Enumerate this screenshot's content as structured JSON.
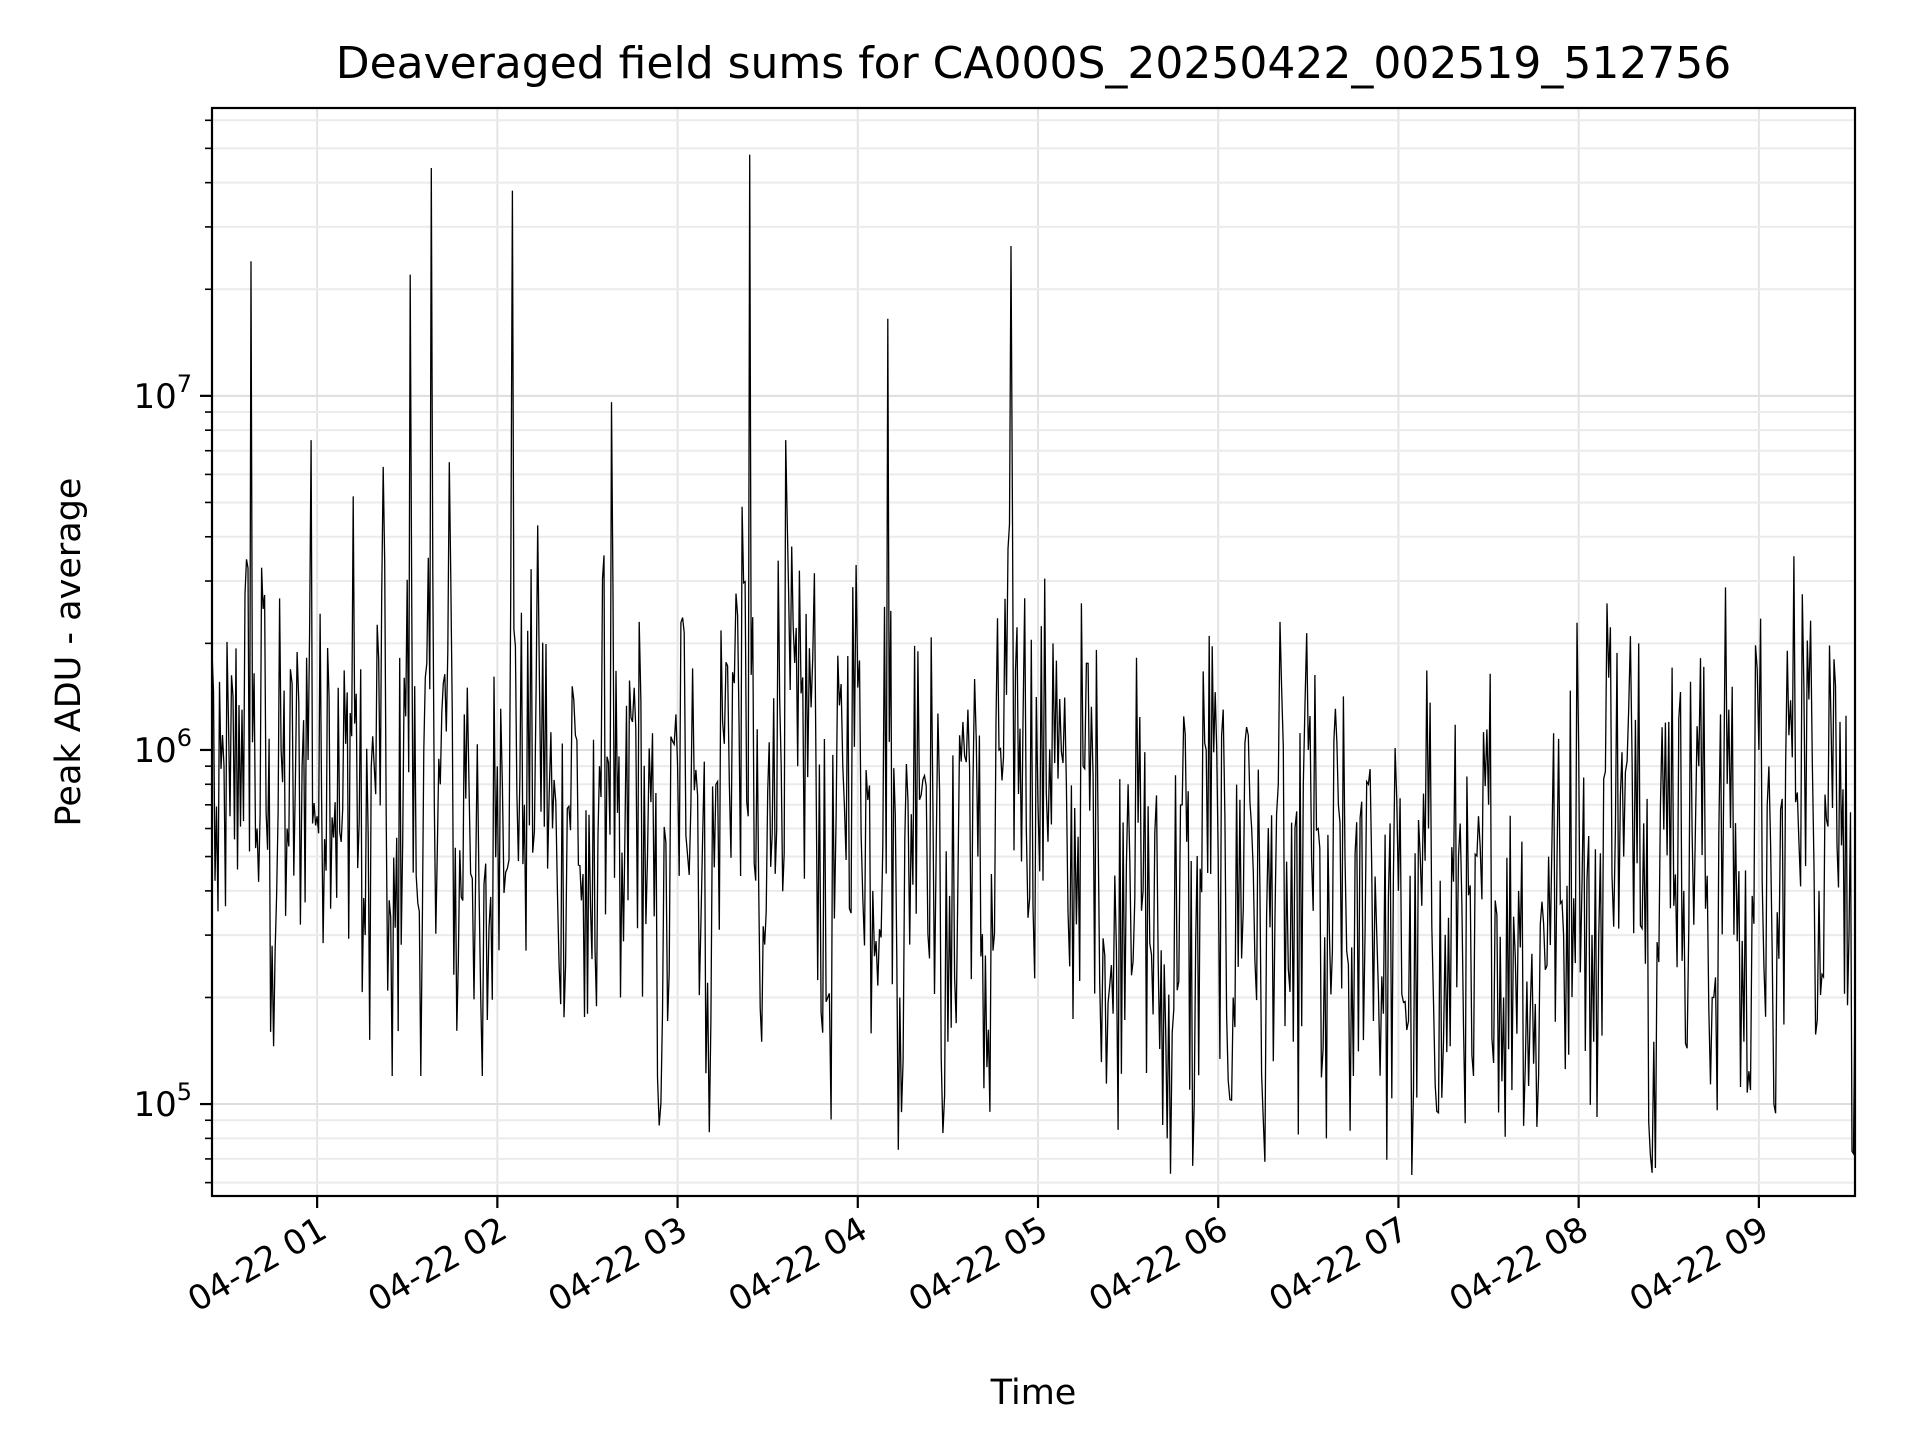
{
  "chart_data": {
    "type": "line",
    "title": "Deaveraged field sums for CA000S_20250422_002519_512756",
    "xlabel": "Time",
    "ylabel": "Peak ADU - average",
    "x_scale": "time",
    "y_scale": "log",
    "xlim": [
      "2025-04-22T00:25",
      "2025-04-22T09:32"
    ],
    "ylim": [
      55000,
      65000000
    ],
    "grid": true,
    "x_ticks": [
      {
        "t": "2025-04-22T01:00",
        "label": "04-22 01"
      },
      {
        "t": "2025-04-22T02:00",
        "label": "04-22 02"
      },
      {
        "t": "2025-04-22T03:00",
        "label": "04-22 03"
      },
      {
        "t": "2025-04-22T04:00",
        "label": "04-22 04"
      },
      {
        "t": "2025-04-22T05:00",
        "label": "04-22 05"
      },
      {
        "t": "2025-04-22T06:00",
        "label": "04-22 06"
      },
      {
        "t": "2025-04-22T07:00",
        "label": "04-22 07"
      },
      {
        "t": "2025-04-22T08:00",
        "label": "04-22 08"
      },
      {
        "t": "2025-04-22T09:00",
        "label": "04-22 09"
      }
    ],
    "y_ticks": [
      {
        "value": 100000,
        "base": "10",
        "exp": "5"
      },
      {
        "value": 1000000,
        "base": "10",
        "exp": "6"
      },
      {
        "value": 10000000,
        "base": "10",
        "exp": "7"
      }
    ],
    "series": [
      {
        "color": "#000000",
        "x": [
          "2025-04-22T00:25",
          "2025-04-22T00:27",
          "2025-04-22T00:29",
          "2025-04-22T00:31",
          "2025-04-22T00:35",
          "2025-04-22T00:38",
          "2025-04-22T00:40",
          "2025-04-22T00:42",
          "2025-04-22T00:45",
          "2025-04-22T00:48",
          "2025-04-22T00:50",
          "2025-04-22T00:55",
          "2025-04-22T00:58",
          "2025-04-22T01:00",
          "2025-04-22T01:04",
          "2025-04-22T01:08",
          "2025-04-22T01:12",
          "2025-04-22T01:16",
          "2025-04-22T01:19",
          "2025-04-22T01:22",
          "2025-04-22T01:25",
          "2025-04-22T01:29",
          "2025-04-22T01:31",
          "2025-04-22T01:34",
          "2025-04-22T01:38",
          "2025-04-22T01:41",
          "2025-04-22T01:44",
          "2025-04-22T01:47",
          "2025-04-22T01:50",
          "2025-04-22T01:55",
          "2025-04-22T02:00",
          "2025-04-22T02:05",
          "2025-04-22T02:09",
          "2025-04-22T02:14",
          "2025-04-22T02:20",
          "2025-04-22T02:26",
          "2025-04-22T02:30",
          "2025-04-22T02:34",
          "2025-04-22T02:38",
          "2025-04-22T02:41",
          "2025-04-22T02:45",
          "2025-04-22T02:50",
          "2025-04-22T02:55",
          "2025-04-22T03:00",
          "2025-04-22T03:05",
          "2025-04-22T03:10",
          "2025-04-22T03:15",
          "2025-04-22T03:20",
          "2025-04-22T03:24",
          "2025-04-22T03:28",
          "2025-04-22T03:32",
          "2025-04-22T03:36",
          "2025-04-22T03:40",
          "2025-04-22T03:45",
          "2025-04-22T03:50",
          "2025-04-22T03:55",
          "2025-04-22T04:00",
          "2025-04-22T04:05",
          "2025-04-22T04:10",
          "2025-04-22T04:14",
          "2025-04-22T04:20",
          "2025-04-22T04:25",
          "2025-04-22T04:30",
          "2025-04-22T04:35",
          "2025-04-22T04:40",
          "2025-04-22T04:44",
          "2025-04-22T04:47",
          "2025-04-22T04:51",
          "2025-04-22T04:55",
          "2025-04-22T05:00",
          "2025-04-22T05:05",
          "2025-04-22T05:10",
          "2025-04-22T05:15",
          "2025-04-22T05:20",
          "2025-04-22T05:25",
          "2025-04-22T05:30",
          "2025-04-22T05:35",
          "2025-04-22T05:40",
          "2025-04-22T05:43",
          "2025-04-22T05:48",
          "2025-04-22T05:52",
          "2025-04-22T05:56",
          "2025-04-22T06:00",
          "2025-04-22T06:05",
          "2025-04-22T06:10",
          "2025-04-22T06:15",
          "2025-04-22T06:20",
          "2025-04-22T06:25",
          "2025-04-22T06:30",
          "2025-04-22T06:36",
          "2025-04-22T06:40",
          "2025-04-22T06:45",
          "2025-04-22T06:50",
          "2025-04-22T06:55",
          "2025-04-22T07:00",
          "2025-04-22T07:05",
          "2025-04-22T07:10",
          "2025-04-22T07:15",
          "2025-04-22T07:20",
          "2025-04-22T07:25",
          "2025-04-22T07:30",
          "2025-04-22T07:35",
          "2025-04-22T07:40",
          "2025-04-22T07:45",
          "2025-04-22T07:50",
          "2025-04-22T07:55",
          "2025-04-22T08:00",
          "2025-04-22T08:05",
          "2025-04-22T08:10",
          "2025-04-22T08:15",
          "2025-04-22T08:20",
          "2025-04-22T08:25",
          "2025-04-22T08:30",
          "2025-04-22T08:35",
          "2025-04-22T08:40",
          "2025-04-22T08:45",
          "2025-04-22T08:50",
          "2025-04-22T08:55",
          "2025-04-22T09:00",
          "2025-04-22T09:05",
          "2025-04-22T09:10",
          "2025-04-22T09:15",
          "2025-04-22T09:20",
          "2025-04-22T09:24",
          "2025-04-22T09:27",
          "2025-04-22T09:30",
          "2025-04-22T09:32"
        ],
        "y": [
          1900000,
          350000,
          900000,
          650000,
          1300000,
          24000000,
          600000,
          2500000,
          280000,
          1000000,
          600000,
          900000,
          7500000,
          650000,
          1400000,
          550000,
          5200000,
          300000,
          900000,
          6300000,
          120000,
          1600000,
          22000000,
          350000,
          44000000,
          800000,
          6500000,
          250000,
          1500000,
          120000,
          900000,
          38000000,
          700000,
          1600000,
          400000,
          1100000,
          180000,
          900000,
          9600000,
          200000,
          1200000,
          500000,
          180000,
          900000,
          1700000,
          220000,
          1200000,
          2400000,
          48000000,
          150000,
          1400000,
          7500000,
          900000,
          1800000,
          200000,
          900000,
          1500000,
          400000,
          16500000,
          200000,
          1900000,
          700000,
          150000,
          1200000,
          500000,
          95000,
          1000000,
          26500000,
          1200000,
          700000,
          2000000,
          350000,
          900000,
          600000,
          180000,
          800000,
          400000,
          250000,
          80000,
          700000,
          100000,
          1000000,
          500000,
          200000,
          1100000,
          90000,
          800000,
          150000,
          1000000,
          80000,
          700000,
          120000,
          800000,
          180000,
          400000,
          110000,
          600000,
          150000,
          500000,
          120000,
          700000,
          200000,
          400000,
          130000,
          500000,
          300000,
          1000000,
          150000,
          1600000,
          500000,
          2000000,
          150000,
          1200000,
          400000,
          900000,
          200000,
          1300000,
          150000,
          1000000,
          100000,
          1100000,
          1500000,
          400000,
          1200000,
          1200000,
          300000,
          210000
        ]
      }
    ]
  }
}
